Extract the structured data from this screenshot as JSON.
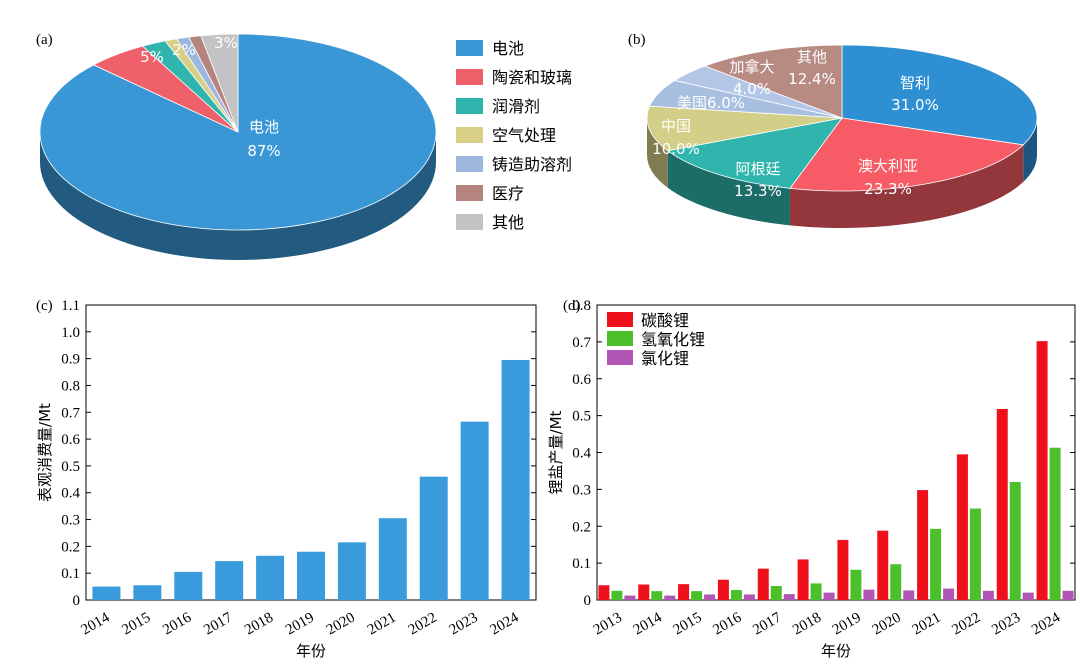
{
  "chart_data": [
    {
      "panel": "(a)",
      "type": "pie",
      "categories": [
        "电池",
        "陶瓷和玻璃",
        "润滑剂",
        "空气处理",
        "铸造助溶剂",
        "医疗",
        "其他"
      ],
      "values": [
        87,
        5,
        2,
        1,
        1,
        1,
        3
      ],
      "colors": [
        "#3a97d6",
        "#f0606a",
        "#2fb5ad",
        "#d6cf85",
        "#9cb6dc",
        "#b6847e",
        "#c3c3c3"
      ],
      "labels": [
        {
          "name": "电池",
          "pct": "87%"
        },
        {
          "name": "",
          "pct": "5%"
        },
        {
          "name": "",
          "pct": "2%"
        },
        {
          "name": "",
          "pct": ""
        },
        {
          "name": "",
          "pct": ""
        },
        {
          "name": "",
          "pct": ""
        },
        {
          "name": "",
          "pct": "3%"
        }
      ],
      "legend": "right"
    },
    {
      "panel": "(b)",
      "type": "pie",
      "categories": [
        "智利",
        "澳大利亚",
        "阿根廷",
        "中国",
        "美国",
        "加拿大",
        "其他"
      ],
      "values": [
        31.0,
        23.3,
        13.3,
        10.0,
        6.0,
        4.0,
        12.4
      ],
      "colors": [
        "#2f8fd3",
        "#f65b66",
        "#2fb5ad",
        "#d4cf88",
        "#a9bfe0",
        "#b3c6e6",
        "#b78a82"
      ],
      "labels": [
        {
          "name": "智利",
          "pct": "31.0%"
        },
        {
          "name": "澳大利亚",
          "pct": "23.3%"
        },
        {
          "name": "阿根廷",
          "pct": "13.3%"
        },
        {
          "name": "中国",
          "pct": "10.0%"
        },
        {
          "name": "美国6.0%",
          "pct": ""
        },
        {
          "name": "加拿大",
          "pct": "4.0%"
        },
        {
          "name": "其他",
          "pct": "12.4%"
        }
      ]
    },
    {
      "panel": "(c)",
      "type": "bar",
      "categories": [
        "2014",
        "2015",
        "2016",
        "2017",
        "2018",
        "2019",
        "2020",
        "2021",
        "2022",
        "2023",
        "2024"
      ],
      "values": [
        0.05,
        0.055,
        0.105,
        0.145,
        0.165,
        0.18,
        0.215,
        0.305,
        0.46,
        0.665,
        0.895
      ],
      "color": "#3a9bdc",
      "xlabel": "年份",
      "ylabel": "表观消费量/Mt",
      "ylim": [
        0,
        1.1
      ],
      "yticks": [
        "0",
        "0.1",
        "0.2",
        "0.3",
        "0.4",
        "0.5",
        "0.6",
        "0.7",
        "0.8",
        "0.9",
        "1.0",
        "1.1"
      ],
      "grid": false
    },
    {
      "panel": "(d)",
      "type": "bar",
      "categories": [
        "2013",
        "2014",
        "2015",
        "2016",
        "2017",
        "2018",
        "2019",
        "2020",
        "2021",
        "2022",
        "2023",
        "2024"
      ],
      "series": [
        {
          "name": "碳酸锂",
          "color": "#f0101c",
          "values": [
            0.04,
            0.042,
            0.043,
            0.055,
            0.085,
            0.11,
            0.163,
            0.188,
            0.298,
            0.395,
            0.518,
            0.702
          ]
        },
        {
          "name": "氢氧化锂",
          "color": "#4cc02a",
          "values": [
            0.025,
            0.024,
            0.024,
            0.027,
            0.038,
            0.045,
            0.082,
            0.097,
            0.193,
            0.248,
            0.32,
            0.413
          ]
        },
        {
          "name": "氯化锂",
          "color": "#b156b4",
          "values": [
            0.012,
            0.012,
            0.015,
            0.015,
            0.016,
            0.02,
            0.028,
            0.026,
            0.031,
            0.025,
            0.02,
            0.025
          ]
        }
      ],
      "xlabel": "年份",
      "ylabel": "锂盐产量/Mt",
      "ylim": [
        0,
        0.8
      ],
      "yticks": [
        "0",
        "0.1",
        "0.2",
        "0.3",
        "0.4",
        "0.5",
        "0.6",
        "0.7",
        "0.8"
      ],
      "legend": "top-left",
      "grid": false
    }
  ]
}
